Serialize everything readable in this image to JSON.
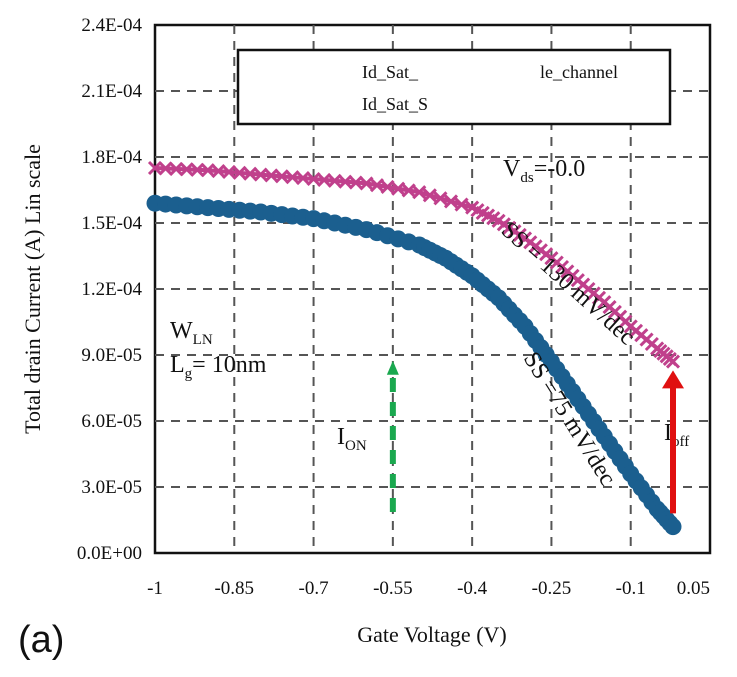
{
  "chart_data": {
    "type": "line",
    "panel_label": "(a)",
    "xlabel": "Gate Voltage (V)",
    "ylabel": "Total drain Current (A) Lin scale",
    "xlim": [
      -1,
      0.05
    ],
    "ylim": [
      0,
      0.00024
    ],
    "x_ticks": [
      "-1",
      "-0.85",
      "-0.7",
      "-0.55",
      "-0.4",
      "-0.25",
      "-0.1",
      "0.05"
    ],
    "y_ticks": [
      "0.0E+00",
      "3.0E-05",
      "6.0E-05",
      "9.0E-05",
      "1.2E-04",
      "1.5E-04",
      "1.8E-04",
      "2.1E-04",
      "2.4E-04"
    ],
    "grid": true,
    "legend": {
      "position": "top-right",
      "entries": [
        "Id_Sat_",
        "Id_Sat_S"
      ],
      "entry_tails": [
        "le_channel",
        ""
      ]
    },
    "series": [
      {
        "name": "Id_Sat_",
        "color": "#c0408c",
        "marker": "x",
        "x": [
          -1.0,
          -0.9,
          -0.8,
          -0.7,
          -0.6,
          -0.5,
          -0.4,
          -0.35,
          -0.3,
          -0.25,
          -0.2,
          -0.15,
          -0.1,
          -0.05,
          -0.02
        ],
        "y": [
          0.000175,
          0.000174,
          0.000172,
          0.00017,
          0.000168,
          0.000164,
          0.000157,
          0.000151,
          0.000143,
          0.000134,
          0.000124,
          0.000114,
          0.000103,
          9.3e-05,
          8.7e-05
        ]
      },
      {
        "name": "Id_Sat_S",
        "color": "#1b5f8f",
        "marker": "circle",
        "x": [
          -1.0,
          -0.9,
          -0.8,
          -0.7,
          -0.6,
          -0.5,
          -0.45,
          -0.4,
          -0.35,
          -0.3,
          -0.25,
          -0.2,
          -0.15,
          -0.1,
          -0.05,
          -0.02
        ],
        "y": [
          0.000159,
          0.000157,
          0.000155,
          0.000152,
          0.000147,
          0.00014,
          0.000134,
          0.000126,
          0.000116,
          0.000103,
          8.7e-05,
          7e-05,
          5.3e-05,
          3.6e-05,
          2e-05,
          1.2e-05
        ]
      }
    ],
    "annotations": {
      "vds": {
        "main": "V",
        "sub": "ds",
        "tail": "=-0.0"
      },
      "ss_top": "SS = 130 mV/dec",
      "ss_bottom": "SS =75 mV/dec",
      "wln": {
        "main": "W",
        "sub": "LN",
        "tail": ""
      },
      "lg": {
        "main": "L",
        "sub": "g",
        "tail": "= 10nm"
      },
      "ion": {
        "main": "I",
        "sub": "ON"
      },
      "ioff": {
        "main": "I",
        "sub": "off"
      }
    },
    "arrow_colors": {
      "ion": "#1aa84f",
      "ioff": "#e01010"
    }
  }
}
